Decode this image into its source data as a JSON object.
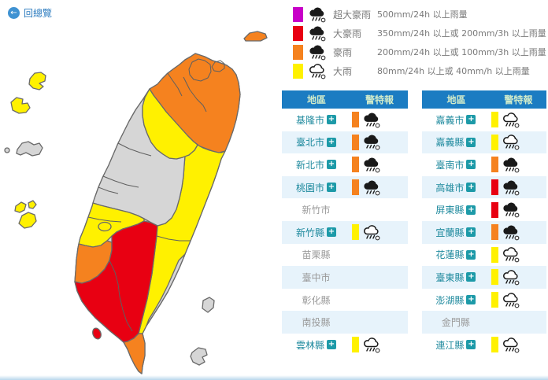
{
  "back_link": {
    "label": "回總覽"
  },
  "icons": {
    "back_arrow": "←",
    "plus_glyph": "+"
  },
  "legend": {
    "items": [
      {
        "label": "超大豪雨",
        "desc": "500mm/24h 以上雨量",
        "color": "#c800c8",
        "icon": "dark"
      },
      {
        "label": "大豪雨",
        "desc": "350mm/24h 以上或 200mm/3h 以上雨量",
        "color": "#e80012",
        "icon": "dark"
      },
      {
        "label": "豪雨",
        "desc": "200mm/24h 以上或 100mm/3h 以上雨量",
        "color": "#f5821f",
        "icon": "dark"
      },
      {
        "label": "大雨",
        "desc": "80mm/24h 以上或 40mm/h 以上雨量",
        "color": "#fff100",
        "icon": "light"
      }
    ]
  },
  "tables": [
    {
      "headers": {
        "region": "地區",
        "warning": "警特報"
      },
      "rows": [
        {
          "region": "基隆市",
          "expandable": true,
          "warning": "heavy"
        },
        {
          "region": "臺北市",
          "expandable": true,
          "warning": "heavy"
        },
        {
          "region": "新北市",
          "expandable": true,
          "warning": "heavy"
        },
        {
          "region": "桃園市",
          "expandable": true,
          "warning": "heavy"
        },
        {
          "region": "新竹市",
          "expandable": false,
          "warning": null
        },
        {
          "region": "新竹縣",
          "expandable": true,
          "warning": "rain"
        },
        {
          "region": "苗栗縣",
          "expandable": false,
          "warning": null
        },
        {
          "region": "臺中市",
          "expandable": false,
          "warning": null
        },
        {
          "region": "彰化縣",
          "expandable": false,
          "warning": null
        },
        {
          "region": "南投縣",
          "expandable": false,
          "warning": null
        },
        {
          "region": "雲林縣",
          "expandable": true,
          "warning": "rain"
        }
      ]
    },
    {
      "headers": {
        "region": "地區",
        "warning": "警特報"
      },
      "rows": [
        {
          "region": "嘉義市",
          "expandable": true,
          "warning": "rain"
        },
        {
          "region": "嘉義縣",
          "expandable": true,
          "warning": "rain"
        },
        {
          "region": "臺南市",
          "expandable": true,
          "warning": "heavy"
        },
        {
          "region": "高雄市",
          "expandable": true,
          "warning": "torrential"
        },
        {
          "region": "屏東縣",
          "expandable": true,
          "warning": "torrential"
        },
        {
          "region": "宜蘭縣",
          "expandable": true,
          "warning": "heavy"
        },
        {
          "region": "花蓮縣",
          "expandable": true,
          "warning": "rain"
        },
        {
          "region": "臺東縣",
          "expandable": true,
          "warning": "rain"
        },
        {
          "region": "澎湖縣",
          "expandable": true,
          "warning": "rain"
        },
        {
          "region": "金門縣",
          "expandable": false,
          "warning": null
        },
        {
          "region": "連江縣",
          "expandable": true,
          "warning": "rain"
        }
      ]
    }
  ],
  "map": {
    "colors": {
      "extreme": "#c800c8",
      "torrential": "#e80012",
      "heavy": "#f5821f",
      "rain": "#fff100",
      "none": "#d6d6d6"
    },
    "levels": {
      "island-base": "none",
      "north-block": "heavy",
      "hsinchu-county": "rain",
      "central-counties": "none",
      "yunlin-chiayi": "rain",
      "chiayi-city": "rain",
      "tainan": "heavy",
      "kaohsiung-pingtung": "torrential",
      "hengchun-peninsula": "heavy",
      "hualien-taitung": "rain",
      "taitung-coast": "none",
      "diaoyutai": "heavy",
      "matsu-a": "rain",
      "matsu-b": "rain",
      "kinmen": "none",
      "kinmen-islet": "none",
      "penghu-a": "rain",
      "penghu-b": "rain",
      "penghu-c": "rain",
      "liuqiu": "torrential",
      "green-island": "none",
      "orchid-island": "none"
    }
  }
}
